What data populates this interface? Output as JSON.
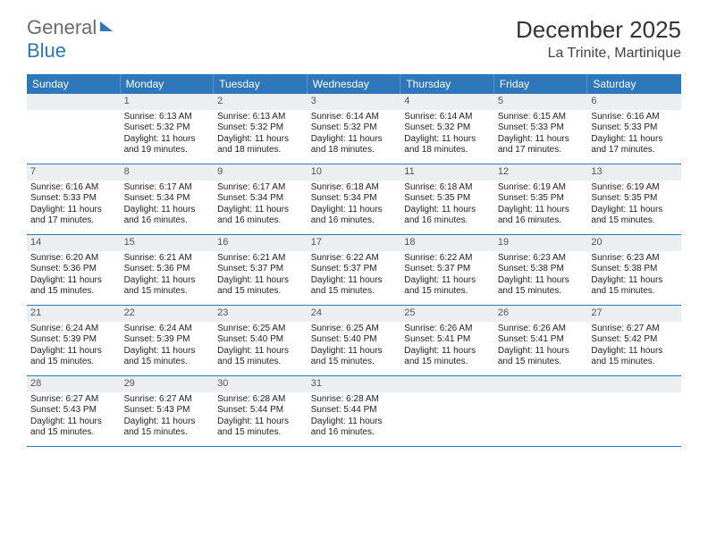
{
  "brand": {
    "text1": "General",
    "text2": "Blue"
  },
  "title": "December 2025",
  "location": "La Trinite, Martinique",
  "colors": {
    "header_bg": "#2f77bb",
    "header_text": "#ffffff",
    "daynum_bg": "#eceff1",
    "row_border": "#2f77bb",
    "body_text": "#222222"
  },
  "dow": [
    "Sunday",
    "Monday",
    "Tuesday",
    "Wednesday",
    "Thursday",
    "Friday",
    "Saturday"
  ],
  "weeks": [
    [
      {
        "n": "",
        "sr": "",
        "ss": "",
        "dl": ""
      },
      {
        "n": "1",
        "sr": "6:13 AM",
        "ss": "5:32 PM",
        "dl": "11 hours and 19 minutes."
      },
      {
        "n": "2",
        "sr": "6:13 AM",
        "ss": "5:32 PM",
        "dl": "11 hours and 18 minutes."
      },
      {
        "n": "3",
        "sr": "6:14 AM",
        "ss": "5:32 PM",
        "dl": "11 hours and 18 minutes."
      },
      {
        "n": "4",
        "sr": "6:14 AM",
        "ss": "5:32 PM",
        "dl": "11 hours and 18 minutes."
      },
      {
        "n": "5",
        "sr": "6:15 AM",
        "ss": "5:33 PM",
        "dl": "11 hours and 17 minutes."
      },
      {
        "n": "6",
        "sr": "6:16 AM",
        "ss": "5:33 PM",
        "dl": "11 hours and 17 minutes."
      }
    ],
    [
      {
        "n": "7",
        "sr": "6:16 AM",
        "ss": "5:33 PM",
        "dl": "11 hours and 17 minutes."
      },
      {
        "n": "8",
        "sr": "6:17 AM",
        "ss": "5:34 PM",
        "dl": "11 hours and 16 minutes."
      },
      {
        "n": "9",
        "sr": "6:17 AM",
        "ss": "5:34 PM",
        "dl": "11 hours and 16 minutes."
      },
      {
        "n": "10",
        "sr": "6:18 AM",
        "ss": "5:34 PM",
        "dl": "11 hours and 16 minutes."
      },
      {
        "n": "11",
        "sr": "6:18 AM",
        "ss": "5:35 PM",
        "dl": "11 hours and 16 minutes."
      },
      {
        "n": "12",
        "sr": "6:19 AM",
        "ss": "5:35 PM",
        "dl": "11 hours and 16 minutes."
      },
      {
        "n": "13",
        "sr": "6:19 AM",
        "ss": "5:35 PM",
        "dl": "11 hours and 15 minutes."
      }
    ],
    [
      {
        "n": "14",
        "sr": "6:20 AM",
        "ss": "5:36 PM",
        "dl": "11 hours and 15 minutes."
      },
      {
        "n": "15",
        "sr": "6:21 AM",
        "ss": "5:36 PM",
        "dl": "11 hours and 15 minutes."
      },
      {
        "n": "16",
        "sr": "6:21 AM",
        "ss": "5:37 PM",
        "dl": "11 hours and 15 minutes."
      },
      {
        "n": "17",
        "sr": "6:22 AM",
        "ss": "5:37 PM",
        "dl": "11 hours and 15 minutes."
      },
      {
        "n": "18",
        "sr": "6:22 AM",
        "ss": "5:37 PM",
        "dl": "11 hours and 15 minutes."
      },
      {
        "n": "19",
        "sr": "6:23 AM",
        "ss": "5:38 PM",
        "dl": "11 hours and 15 minutes."
      },
      {
        "n": "20",
        "sr": "6:23 AM",
        "ss": "5:38 PM",
        "dl": "11 hours and 15 minutes."
      }
    ],
    [
      {
        "n": "21",
        "sr": "6:24 AM",
        "ss": "5:39 PM",
        "dl": "11 hours and 15 minutes."
      },
      {
        "n": "22",
        "sr": "6:24 AM",
        "ss": "5:39 PM",
        "dl": "11 hours and 15 minutes."
      },
      {
        "n": "23",
        "sr": "6:25 AM",
        "ss": "5:40 PM",
        "dl": "11 hours and 15 minutes."
      },
      {
        "n": "24",
        "sr": "6:25 AM",
        "ss": "5:40 PM",
        "dl": "11 hours and 15 minutes."
      },
      {
        "n": "25",
        "sr": "6:26 AM",
        "ss": "5:41 PM",
        "dl": "11 hours and 15 minutes."
      },
      {
        "n": "26",
        "sr": "6:26 AM",
        "ss": "5:41 PM",
        "dl": "11 hours and 15 minutes."
      },
      {
        "n": "27",
        "sr": "6:27 AM",
        "ss": "5:42 PM",
        "dl": "11 hours and 15 minutes."
      }
    ],
    [
      {
        "n": "28",
        "sr": "6:27 AM",
        "ss": "5:43 PM",
        "dl": "11 hours and 15 minutes."
      },
      {
        "n": "29",
        "sr": "6:27 AM",
        "ss": "5:43 PM",
        "dl": "11 hours and 15 minutes."
      },
      {
        "n": "30",
        "sr": "6:28 AM",
        "ss": "5:44 PM",
        "dl": "11 hours and 15 minutes."
      },
      {
        "n": "31",
        "sr": "6:28 AM",
        "ss": "5:44 PM",
        "dl": "11 hours and 16 minutes."
      },
      {
        "n": "",
        "sr": "",
        "ss": "",
        "dl": ""
      },
      {
        "n": "",
        "sr": "",
        "ss": "",
        "dl": ""
      },
      {
        "n": "",
        "sr": "",
        "ss": "",
        "dl": ""
      }
    ]
  ],
  "labels": {
    "sunrise": "Sunrise: ",
    "sunset": "Sunset: ",
    "daylight": "Daylight: "
  }
}
